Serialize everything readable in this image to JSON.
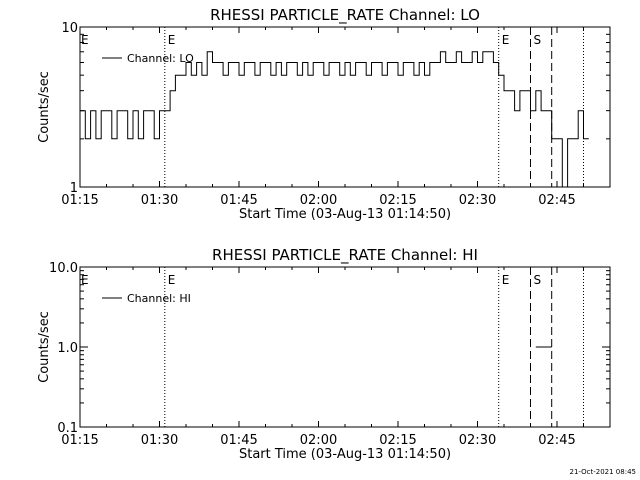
{
  "footer": {
    "timestamp": "21-Oct-2021 08:45"
  },
  "chart_data": [
    {
      "type": "line",
      "title": "RHESSI PARTICLE_RATE Channel: LO",
      "xlabel": "Start Time (03-Aug-13 01:14:50)",
      "ylabel": "Counts/sec",
      "yscale": "log",
      "xlim": [
        "01:15",
        "02:55"
      ],
      "ylim": [
        1,
        10
      ],
      "xticks": [
        "01:15",
        "01:30",
        "01:45",
        "02:00",
        "02:15",
        "02:30",
        "02:45"
      ],
      "yticks": [
        "1",
        "10"
      ],
      "legend": {
        "label": "Channel: LO",
        "position": "top-left"
      },
      "markers": [
        {
          "time": "01:31",
          "style": "dotted",
          "label": "E"
        },
        {
          "time": "02:34",
          "style": "dotted",
          "label": "E"
        },
        {
          "time": "02:40",
          "style": "dashed",
          "label": "S"
        },
        {
          "time": "02:44",
          "style": "dashed",
          "label": ""
        },
        {
          "time": "02:50",
          "style": "dotted",
          "label": ""
        }
      ],
      "edge_label": "E",
      "series": [
        {
          "name": "Channel: LO",
          "x": [
            "01:15",
            "01:16",
            "01:17",
            "01:18",
            "01:19",
            "01:20",
            "01:21",
            "01:22",
            "01:23",
            "01:24",
            "01:25",
            "01:26",
            "01:27",
            "01:28",
            "01:29",
            "01:30",
            "01:31",
            "01:32",
            "01:33",
            "01:34",
            "01:35",
            "01:36",
            "01:37",
            "01:38",
            "01:39",
            "01:40",
            "01:41",
            "01:42",
            "01:43",
            "01:44",
            "01:45",
            "01:46",
            "01:47",
            "01:48",
            "01:49",
            "01:50",
            "01:51",
            "01:52",
            "01:53",
            "01:54",
            "01:55",
            "01:56",
            "01:57",
            "01:58",
            "01:59",
            "02:00",
            "02:01",
            "02:02",
            "02:03",
            "02:04",
            "02:05",
            "02:06",
            "02:07",
            "02:08",
            "02:09",
            "02:10",
            "02:11",
            "02:12",
            "02:13",
            "02:14",
            "02:15",
            "02:16",
            "02:17",
            "02:18",
            "02:19",
            "02:20",
            "02:21",
            "02:22",
            "02:23",
            "02:24",
            "02:25",
            "02:26",
            "02:27",
            "02:28",
            "02:29",
            "02:30",
            "02:31",
            "02:32",
            "02:33",
            "02:34",
            "02:35",
            "02:36",
            "02:37",
            "02:38",
            "02:39",
            "02:40",
            "02:41",
            "02:42",
            "02:43",
            "02:44",
            "02:45",
            "02:46",
            "02:47",
            "02:48",
            "02:49",
            "02:50"
          ],
          "y": [
            3,
            2,
            3,
            2,
            3,
            3,
            2,
            3,
            3,
            2,
            3,
            2,
            3,
            3,
            2,
            3,
            3,
            4,
            5,
            5,
            6,
            5,
            6,
            5,
            7,
            6,
            6,
            5,
            6,
            6,
            5,
            6,
            6,
            5,
            6,
            6,
            5,
            6,
            5,
            6,
            6,
            5,
            6,
            5,
            6,
            6,
            5,
            6,
            6,
            5,
            6,
            5,
            6,
            6,
            5,
            6,
            6,
            5,
            6,
            6,
            5,
            6,
            6,
            5,
            6,
            5,
            6,
            6,
            7,
            6,
            6,
            7,
            6,
            6,
            7,
            6,
            7,
            7,
            6,
            5,
            4,
            4,
            3,
            4,
            4,
            3,
            4,
            3,
            3,
            2,
            2,
            1,
            2,
            2,
            3,
            2
          ]
        }
      ]
    },
    {
      "type": "line",
      "title": "RHESSI PARTICLE_RATE Channel: HI",
      "xlabel": "Start Time (03-Aug-13 01:14:50)",
      "ylabel": "Counts/sec",
      "yscale": "log",
      "xlim": [
        "01:15",
        "02:55"
      ],
      "ylim": [
        0.1,
        10
      ],
      "xticks": [
        "01:15",
        "01:30",
        "01:45",
        "02:00",
        "02:15",
        "02:30",
        "02:45"
      ],
      "yticks": [
        "0.1",
        "1.0",
        "10.0"
      ],
      "legend": {
        "label": "Channel: HI",
        "position": "top-left"
      },
      "markers": [
        {
          "time": "01:31",
          "style": "dotted",
          "label": "E"
        },
        {
          "time": "02:34",
          "style": "dotted",
          "label": "E"
        },
        {
          "time": "02:40",
          "style": "dashed",
          "label": "S"
        },
        {
          "time": "02:44",
          "style": "dashed",
          "label": ""
        },
        {
          "time": "02:50",
          "style": "dotted",
          "label": ""
        }
      ],
      "edge_label": "E",
      "series": [
        {
          "name": "Channel: HI",
          "x": [
            "02:41",
            "02:43"
          ],
          "y": [
            1.0,
            1.0
          ]
        }
      ]
    }
  ]
}
